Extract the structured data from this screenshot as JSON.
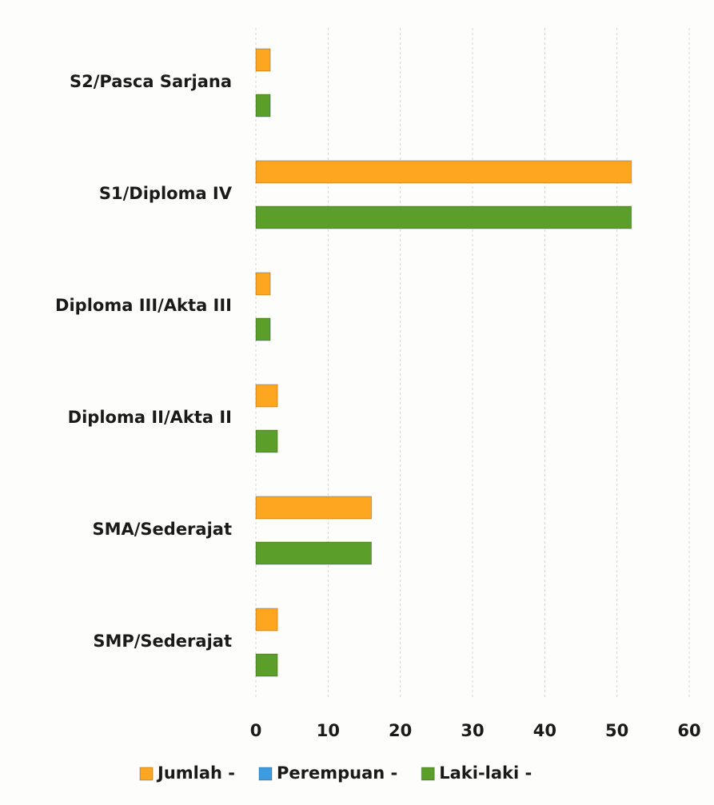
{
  "chart_data": {
    "type": "hbar",
    "categories": [
      "S2/Pasca Sarjana",
      "S1/Diploma IV",
      "Diploma III/Akta III",
      "Diploma II/Akta II",
      "SMA/Sederajat",
      "SMP/Sederajat"
    ],
    "series": [
      {
        "name": "Jumlah -",
        "color": "#ffa621",
        "values": [
          2,
          52,
          2,
          3,
          16,
          3
        ]
      },
      {
        "name": "Perempuan -",
        "color": "#3d9be0",
        "values": [
          0,
          0,
          0,
          0,
          0,
          0
        ]
      },
      {
        "name": "Laki-laki -",
        "color": "#5b9e2a",
        "values": [
          2,
          52,
          2,
          3,
          16,
          3
        ]
      }
    ],
    "xlim": [
      0,
      60
    ],
    "xticks": [
      0,
      10,
      20,
      30,
      40,
      50,
      60
    ],
    "grid": true,
    "legend": "bottom"
  }
}
